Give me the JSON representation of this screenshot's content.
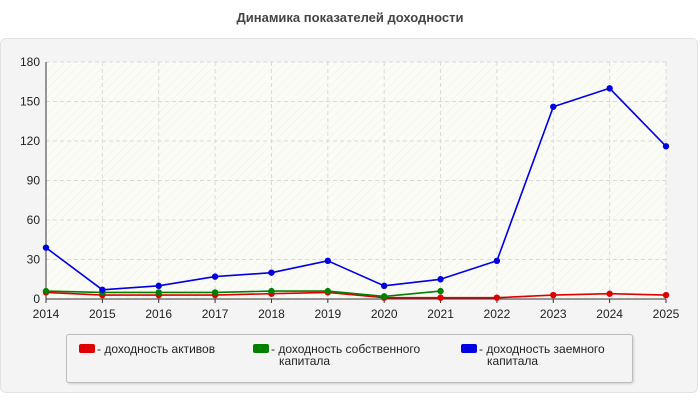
{
  "colors": {
    "assets": "#e00000",
    "equity": "#008000",
    "debt": "#0000e0",
    "grid": "#d9d9d9",
    "axis": "#333333"
  },
  "chart_data": {
    "type": "line",
    "title": "Динамика показателей доходности",
    "x": [
      "2014",
      "2015",
      "2016",
      "2017",
      "2018",
      "2019",
      "2020",
      "2021",
      "2022",
      "2023",
      "2024",
      "2025"
    ],
    "ylim": [
      0,
      180
    ],
    "yticks": [
      "0",
      "30",
      "60",
      "90",
      "120",
      "150",
      "180"
    ],
    "grid": true,
    "legend_position": "bottom",
    "series": [
      {
        "key": "assets",
        "name": "- доходность активов",
        "name_lines": [
          "- доходность активов"
        ],
        "color": "#e00000",
        "values": [
          5,
          3,
          3,
          3,
          4,
          5,
          1,
          1,
          1,
          3,
          4,
          3
        ]
      },
      {
        "key": "equity",
        "name": "- доходность собственного капитала",
        "name_lines": [
          "- доходность собственного",
          "капитала"
        ],
        "color": "#008000",
        "values": [
          6,
          5,
          5,
          5,
          6,
          6,
          2,
          6,
          null,
          null,
          null,
          null
        ]
      },
      {
        "key": "debt",
        "name": "- доходность заемного капитала",
        "name_lines": [
          "- доходность заемного",
          "капитала"
        ],
        "color": "#0000e0",
        "values": [
          39,
          7,
          10,
          17,
          20,
          29,
          10,
          15,
          29,
          146,
          160,
          116
        ]
      }
    ]
  }
}
